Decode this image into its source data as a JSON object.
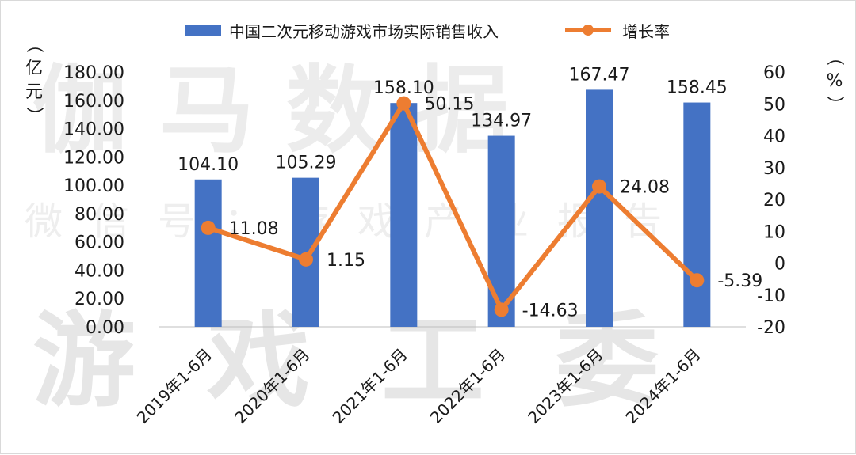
{
  "watermark": {
    "line1": "伽马数据",
    "line2": "微信号：游戏产业报告",
    "line3": "游戏工委"
  },
  "legend": {
    "bar_label": "中国二次元移动游戏市场实际销售收入",
    "line_label": "增长率"
  },
  "axes": {
    "left_unit": "（亿元）",
    "right_unit": "（%）"
  },
  "chart_data": {
    "type": "bar",
    "categories": [
      "2019年1-6月",
      "2020年1-6月",
      "2021年1-6月",
      "2022年1-6月",
      "2023年1-6月",
      "2024年1-6月"
    ],
    "series": [
      {
        "name": "中国二次元移动游戏市场实际销售收入",
        "type": "bar",
        "axis": "left",
        "values": [
          104.1,
          105.29,
          158.1,
          134.97,
          167.47,
          158.45
        ],
        "labels": [
          "104.10",
          "105.29",
          "158.10",
          "134.97",
          "167.47",
          "158.45"
        ]
      },
      {
        "name": "增长率",
        "type": "line",
        "axis": "right",
        "values": [
          11.08,
          1.15,
          50.15,
          -14.63,
          24.08,
          -5.39
        ],
        "labels": [
          "11.08",
          "1.15",
          "50.15",
          "-14.63",
          "24.08",
          "-5.39"
        ]
      }
    ],
    "left_axis": {
      "unit": "（亿元）",
      "ylim": [
        0,
        180
      ],
      "ticks": [
        "0.00",
        "20.00",
        "40.00",
        "60.00",
        "80.00",
        "100.00",
        "120.00",
        "140.00",
        "160.00",
        "180.00"
      ]
    },
    "right_axis": {
      "unit": "（%）",
      "ylim": [
        -20,
        60
      ],
      "ticks": [
        "-20",
        "-10",
        "0",
        "10",
        "20",
        "30",
        "40",
        "50",
        "60"
      ]
    },
    "grid": false,
    "legend_position": "top",
    "colors": {
      "bar": "#4472C4",
      "line": "#ED7D31"
    }
  }
}
